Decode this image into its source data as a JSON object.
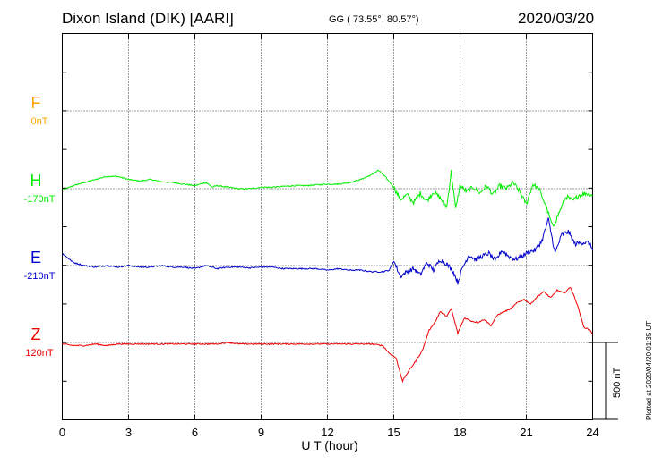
{
  "header": {
    "station": "Dixon Island (DIK)  [AARI]",
    "coords": "GG ( 73.55°,  80.57°)",
    "date": "2020/03/20"
  },
  "footer": {
    "plotted": "Plotted at 2020/04/20 01:35 UT"
  },
  "chart_data": {
    "type": "line",
    "title": "Dixon Island (DIK)  [AARI]",
    "xlabel": "U T (hour)",
    "ylabel": "",
    "xlim": [
      0,
      24
    ],
    "xticks": [
      0,
      3,
      6,
      9,
      12,
      15,
      18,
      21,
      24
    ],
    "ylim": [
      0,
      1
    ],
    "grid": true,
    "legend": "left",
    "scale_bar": {
      "label": "500 nT",
      "value_nT": 500
    },
    "series": [
      {
        "name": "F",
        "baseline_label": "0nT",
        "color": "#ffa500",
        "slot": 0,
        "x": [],
        "values": []
      },
      {
        "name": "H",
        "baseline_label": "-170nT",
        "color": "#00ee00",
        "slot": 1,
        "x": [
          0,
          0.5,
          1,
          1.5,
          2,
          2.5,
          3,
          3.5,
          4,
          4.5,
          5,
          5.5,
          6,
          6.5,
          6.8,
          7,
          7.5,
          8,
          8.5,
          9,
          9.5,
          10,
          10.5,
          11,
          11.5,
          12,
          12.5,
          13,
          13.5,
          14,
          14.3,
          14.6,
          15,
          15.3,
          15.6,
          15.9,
          16.2,
          16.5,
          16.8,
          17.1,
          17.4,
          17.6,
          17.8,
          18,
          18.3,
          18.6,
          18.9,
          19.2,
          19.5,
          19.8,
          20.1,
          20.4,
          20.7,
          21,
          21.3,
          21.6,
          21.9,
          22.2,
          22.5,
          22.8,
          23.1,
          23.4,
          23.7,
          24
        ],
        "values": [
          -10,
          20,
          40,
          60,
          80,
          80,
          60,
          50,
          60,
          45,
          40,
          30,
          20,
          40,
          10,
          20,
          10,
          0,
          0,
          10,
          10,
          15,
          20,
          20,
          25,
          30,
          30,
          40,
          60,
          90,
          120,
          80,
          10,
          -70,
          -40,
          -90,
          -30,
          -80,
          -20,
          -60,
          -120,
          110,
          -130,
          20,
          -20,
          10,
          -30,
          20,
          -40,
          20,
          0,
          40,
          -20,
          -100,
          30,
          -10,
          -120,
          -250,
          -150,
          -50,
          -80,
          -40,
          -30,
          -40
        ]
      },
      {
        "name": "E",
        "baseline_label": "-210nT",
        "color": "#0000cc",
        "slot": 2,
        "x": [
          0,
          0.5,
          1,
          1.5,
          2,
          2.5,
          3,
          3.5,
          4,
          4.5,
          5,
          5.5,
          6,
          6.5,
          7,
          7.5,
          8,
          8.5,
          9,
          9.5,
          10,
          10.5,
          11,
          11.5,
          12,
          12.5,
          13,
          13.5,
          14,
          14.5,
          14.8,
          15,
          15.3,
          15.6,
          15.9,
          16.2,
          16.5,
          16.8,
          17.1,
          17.4,
          17.7,
          17.9,
          18.1,
          18.4,
          18.7,
          19,
          19.3,
          19.6,
          19.9,
          20.2,
          20.5,
          20.8,
          21.1,
          21.4,
          21.7,
          22,
          22.3,
          22.6,
          22.9,
          23.2,
          23.5,
          23.8,
          24
        ],
        "values": [
          80,
          20,
          0,
          -10,
          0,
          -10,
          0,
          -10,
          -10,
          0,
          -10,
          -10,
          -20,
          0,
          -20,
          -10,
          -10,
          -15,
          -10,
          -10,
          -20,
          -20,
          -20,
          -20,
          -30,
          -20,
          -30,
          -30,
          -40,
          -40,
          -30,
          30,
          -70,
          -40,
          -20,
          -60,
          20,
          -30,
          40,
          10,
          -40,
          -110,
          -20,
          70,
          40,
          60,
          80,
          30,
          100,
          60,
          40,
          60,
          90,
          100,
          160,
          300,
          80,
          200,
          220,
          140,
          150,
          150,
          110
        ]
      },
      {
        "name": "Z",
        "baseline_label": "120nT",
        "color": "#ee0000",
        "slot": 3,
        "x": [
          0,
          0.5,
          1,
          1.5,
          2,
          2.5,
          3,
          3.5,
          4,
          4.5,
          5,
          5.5,
          6,
          6.5,
          7,
          7.5,
          8,
          8.5,
          9,
          9.5,
          10,
          10.5,
          11,
          11.5,
          12,
          12.5,
          13,
          13.5,
          14,
          14.5,
          14.8,
          15.1,
          15.4,
          15.7,
          16,
          16.3,
          16.6,
          16.9,
          17.1,
          17.4,
          17.6,
          17.9,
          18.2,
          18.5,
          18.8,
          19.1,
          19.4,
          19.7,
          20,
          20.3,
          20.6,
          20.9,
          21.2,
          21.5,
          21.8,
          22.1,
          22.4,
          22.7,
          23,
          23.3,
          23.6,
          23.9,
          24
        ],
        "values": [
          -10,
          -20,
          -20,
          -10,
          -20,
          -10,
          -10,
          -10,
          -10,
          -10,
          -10,
          -10,
          -10,
          -10,
          -10,
          0,
          -10,
          -10,
          -10,
          -10,
          -10,
          -10,
          -10,
          -10,
          -10,
          -10,
          -10,
          -10,
          -10,
          -20,
          -70,
          -100,
          -250,
          -180,
          -120,
          -50,
          80,
          140,
          200,
          170,
          220,
          60,
          160,
          140,
          130,
          150,
          110,
          180,
          200,
          220,
          260,
          280,
          250,
          300,
          330,
          290,
          340,
          320,
          360,
          250,
          100,
          80,
          50
        ]
      }
    ]
  }
}
